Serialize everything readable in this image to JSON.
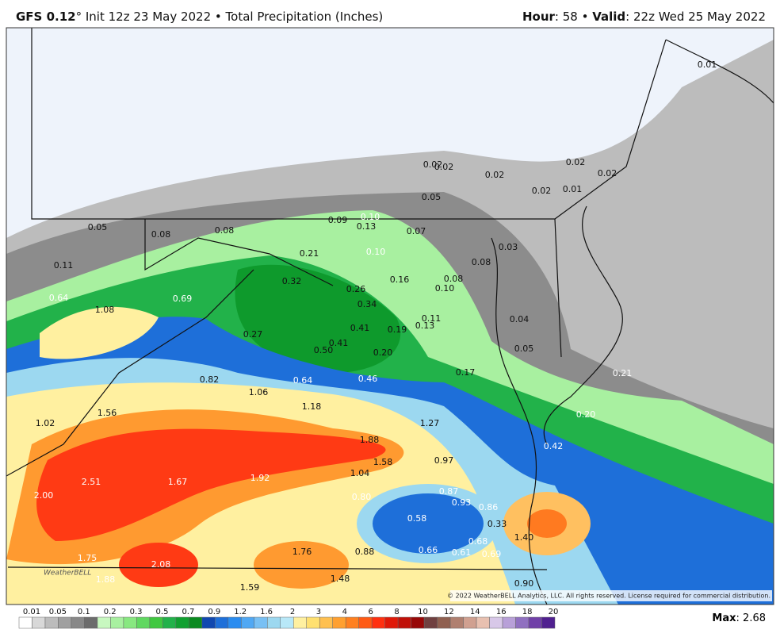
{
  "header": {
    "model": "GFS 0.12",
    "init": "° Init 12z 23 May 2022 • Total Precipitation (Inches)",
    "hour_key": "Hour",
    "hour_val": ": 58 • ",
    "valid_key": "Valid",
    "valid_val": ": 22z Wed 25 May 2022"
  },
  "map_labels": [
    "0.01",
    "0.02",
    "0.02",
    "0.02",
    "0.02",
    "0.02",
    "0.02",
    "0.01",
    "0.05",
    "0.05",
    "0.08",
    "0.08",
    "0.09",
    "0.10",
    "0.13",
    "0.07",
    "0.11",
    "0.21",
    "0.10",
    "0.08",
    "0.03",
    "0.32",
    "0.16",
    "0.08",
    "0.26",
    "0.10",
    "0.64",
    "0.69",
    "0.34",
    "1.08",
    "0.04",
    "0.41",
    "0.19",
    "0.11",
    "0.13",
    "0.27",
    "0.41",
    "0.05",
    "0.50",
    "0.20",
    "0.82",
    "0.64",
    "0.46",
    "0.17",
    "0.21",
    "1.06",
    "1.18",
    "1.56",
    "0.20",
    "1.02",
    "1.27",
    "1.88",
    "0.42",
    "1.58",
    "0.97",
    "1.04",
    "2.51",
    "1.67",
    "1.92",
    "2.00",
    "0.80",
    "0.87",
    "0.93",
    "0.86",
    "0.58",
    "0.33",
    "1.40",
    "0.68",
    "0.66",
    "0.61",
    "0.69",
    "1.76",
    "0.88",
    "1.75",
    "2.08",
    "1.88",
    "1.48",
    "1.59",
    "0.90"
  ],
  "logo": "WeatherBELL",
  "copyright": "© 2022 WeatherBELL Analytics, LLC. All rights reserved. License required for commercial distribution.",
  "legend": [
    "0.01",
    "0.05",
    "0.1",
    "0.2",
    "0.3",
    "0.5",
    "0.7",
    "0.9",
    "1.2",
    "1.6",
    "2",
    "3",
    "4",
    "6",
    "8",
    "10",
    "12",
    "14",
    "16",
    "18",
    "20"
  ],
  "max_key": "Max",
  "max_val": ": 2.68"
}
